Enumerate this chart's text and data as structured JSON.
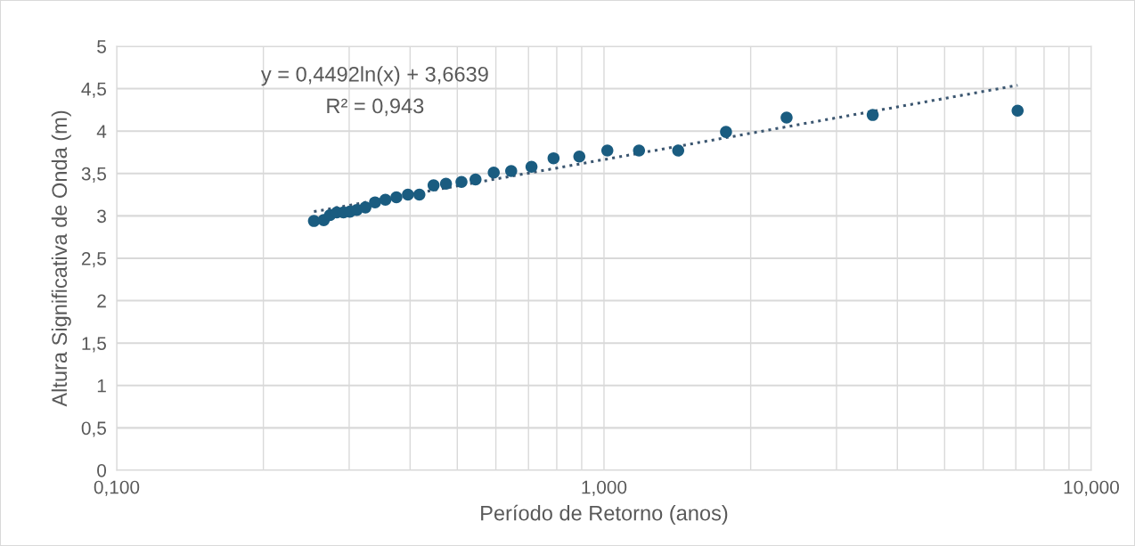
{
  "chart_data": {
    "type": "scatter",
    "xlabel": "Período de Retorno (anos)",
    "ylabel": "Altura Significativa de Onda (m)",
    "log": "x",
    "grid": true,
    "marker": "circle",
    "legend": false,
    "xlim": [
      0.1,
      10
    ],
    "xticks": [
      {
        "value": 0.1,
        "label": "0,100"
      },
      {
        "value": 1,
        "label": "1,000"
      },
      {
        "value": 10,
        "label": "10,000"
      }
    ],
    "ylim": [
      0,
      5
    ],
    "yticks": [
      0,
      {
        "value": 0.5,
        "label": "0,5"
      },
      1,
      {
        "value": 1.5,
        "label": "1,5"
      },
      2,
      {
        "value": 2.5,
        "label": "2,5"
      },
      3,
      {
        "value": 3.5,
        "label": "3,5"
      },
      4,
      {
        "value": 4.5,
        "label": "4,5"
      },
      5
    ],
    "series": [
      {
        "color": "#1a5c80",
        "x": [
          0.254,
          0.266,
          0.274,
          0.283,
          0.292,
          0.301,
          0.311,
          0.324,
          0.339,
          0.356,
          0.375,
          0.396,
          0.418,
          0.447,
          0.474,
          0.51,
          0.545,
          0.594,
          0.645,
          0.71,
          0.788,
          0.89,
          1.016,
          1.18,
          1.42,
          1.78,
          2.37,
          3.56,
          7.06
        ],
        "values": [
          2.94,
          2.95,
          3.01,
          3.04,
          3.04,
          3.05,
          3.07,
          3.1,
          3.16,
          3.19,
          3.22,
          3.25,
          3.25,
          3.36,
          3.38,
          3.4,
          3.43,
          3.51,
          3.53,
          3.58,
          3.68,
          3.7,
          3.77,
          3.77,
          3.77,
          3.99,
          4.16,
          4.19,
          4.24
        ]
      },
      {
        "type": "line",
        "color": "#3b5670",
        "line_style": "dotted",
        "marker": "none",
        "x": [
          0.254,
          7.06
        ],
        "values": [
          3.05,
          4.54
        ]
      }
    ],
    "annotations": [
      "y = 0,4492ln(x) + 3,6639",
      "R² = 0,943"
    ]
  }
}
